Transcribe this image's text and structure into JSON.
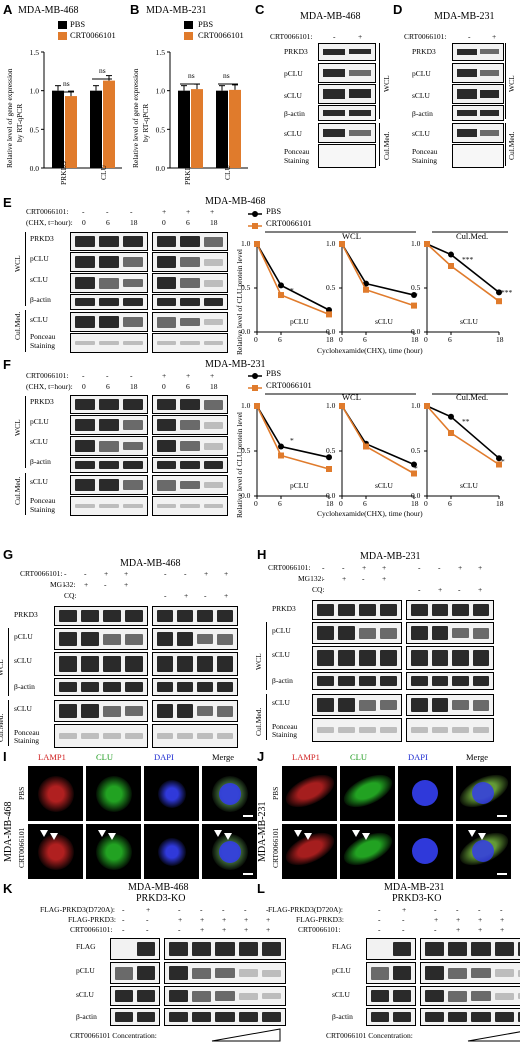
{
  "panels": {
    "A": {
      "letter": "A",
      "title": "MDA-MB-468"
    },
    "B": {
      "letter": "B",
      "title": "MDA-MB-231"
    },
    "C": {
      "letter": "C",
      "title": "MDA-MB-468"
    },
    "D": {
      "letter": "D",
      "title": "MDA-MB-231"
    },
    "E": {
      "letter": "E",
      "title": "MDA-MB-468"
    },
    "F": {
      "letter": "F",
      "title": "MDA-MB-231"
    },
    "G": {
      "letter": "G",
      "title": "MDA-MB-468"
    },
    "H": {
      "letter": "H",
      "title": "MDA-MB-231"
    },
    "I": {
      "letter": "I",
      "title": "MDA-MB-468"
    },
    "J": {
      "letter": "J",
      "title": "MDA-MB-231"
    },
    "K": {
      "letter": "K",
      "title": "MDA-MB-468",
      "subtitle": "PRKD3-KO"
    },
    "L": {
      "letter": "L",
      "title": "MDA-MB-231",
      "subtitle": "PRKD3-KO"
    }
  },
  "labels": {
    "crt": "CRT0066101:",
    "mg132": "MG132:",
    "cq": "CQ:",
    "chx": "(CHX, t=hour):",
    "flag_mut": "FLAG-PRKD3(D720A):",
    "flag_wt": "FLAG-PRKD3:",
    "wcl": "WCL",
    "culmed": "Cul.Med.",
    "prkd3": "PRKD3",
    "pclu": "pCLU",
    "sclu": "sCLU",
    "bactin": "β-actin",
    "ponceau1": "Ponceau",
    "ponceau2": "Staining",
    "flag": "FLAG",
    "plus": "+",
    "minus": "-",
    "t0": "0",
    "t6": "6",
    "t18": "18",
    "conc": "CRT0066101 Concentration:",
    "lamp1": "LAMP1",
    "clu": "CLU",
    "dapi": "DAPI",
    "merge": "Merge",
    "pbs": "PBS",
    "crtname": "CRT0066101",
    "ns": "ns",
    "stars3": "***",
    "stars2": "**",
    "star1": "*",
    "xlabel": "Cyclohexamide(CHX), time (hour)",
    "ylabel": "Relative level of CLU protein level",
    "ylab_bar1": "Relative level of gene expression",
    "ylab_bar2": "by RT-qPCR"
  },
  "colors": {
    "pbs": "#000000",
    "crt": "#e07b2c"
  },
  "chart_data": [
    {
      "type": "bar",
      "panel": "A",
      "categories": [
        "PRKD3",
        "CLU"
      ],
      "ylim": [
        0,
        1.5
      ],
      "yticks": [
        0.0,
        0.5,
        1.0,
        1.5
      ],
      "series": [
        {
          "name": "PBS",
          "values": [
            1.0,
            1.0
          ]
        },
        {
          "name": "CRT0066101",
          "values": [
            0.93,
            1.13
          ]
        }
      ],
      "annotations": [
        "ns",
        "ns"
      ]
    },
    {
      "type": "bar",
      "panel": "B",
      "categories": [
        "PRKD3",
        "CLU"
      ],
      "ylim": [
        0,
        1.5
      ],
      "yticks": [
        0.0,
        0.5,
        1.0,
        1.5
      ],
      "series": [
        {
          "name": "PBS",
          "values": [
            1.0,
            1.0
          ]
        },
        {
          "name": "CRT0066101",
          "values": [
            1.02,
            1.01
          ]
        }
      ],
      "annotations": [
        "ns",
        "ns"
      ]
    },
    {
      "type": "line",
      "panel": "E",
      "group": "WCL",
      "subtitle": "pCLU",
      "x": [
        0,
        6,
        18
      ],
      "ylim": [
        0,
        1.0
      ],
      "series": [
        {
          "name": "PBS",
          "values": [
            1.0,
            0.53,
            0.25
          ]
        },
        {
          "name": "CRT0066101",
          "values": [
            1.0,
            0.42,
            0.2
          ]
        }
      ],
      "annotation": "*"
    },
    {
      "type": "line",
      "panel": "E",
      "group": "WCL",
      "subtitle": "sCLU",
      "x": [
        0,
        6,
        18
      ],
      "ylim": [
        0,
        1.0
      ],
      "series": [
        {
          "name": "PBS",
          "values": [
            1.0,
            0.55,
            0.42
          ]
        },
        {
          "name": "CRT0066101",
          "values": [
            1.0,
            0.48,
            0.3
          ]
        }
      ],
      "annotation": "*"
    },
    {
      "type": "line",
      "panel": "E",
      "group": "Cul.Med.",
      "subtitle": "sCLU",
      "x": [
        0,
        6,
        18
      ],
      "ylim": [
        0,
        1.0
      ],
      "series": [
        {
          "name": "PBS",
          "values": [
            1.0,
            0.88,
            0.45
          ]
        },
        {
          "name": "CRT0066101",
          "values": [
            1.0,
            0.75,
            0.35
          ]
        }
      ],
      "annotations": [
        "***",
        "***"
      ]
    },
    {
      "type": "line",
      "panel": "F",
      "group": "WCL",
      "subtitle": "pCLU",
      "x": [
        0,
        6,
        18
      ],
      "ylim": [
        0,
        1.0
      ],
      "series": [
        {
          "name": "PBS",
          "values": [
            1.0,
            0.55,
            0.43
          ]
        },
        {
          "name": "CRT0066101",
          "values": [
            1.0,
            0.45,
            0.3
          ]
        }
      ],
      "annotation": "*"
    },
    {
      "type": "line",
      "panel": "F",
      "group": "WCL",
      "subtitle": "sCLU",
      "x": [
        0,
        6,
        18
      ],
      "ylim": [
        0,
        1.0
      ],
      "series": [
        {
          "name": "PBS",
          "values": [
            1.0,
            0.58,
            0.35
          ]
        },
        {
          "name": "CRT0066101",
          "values": [
            1.0,
            0.55,
            0.25
          ]
        }
      ],
      "annotation": "*"
    },
    {
      "type": "line",
      "panel": "F",
      "group": "Cul.Med.",
      "subtitle": "sCLU",
      "x": [
        0,
        6,
        18
      ],
      "ylim": [
        0,
        1.0
      ],
      "series": [
        {
          "name": "PBS",
          "values": [
            1.0,
            0.88,
            0.42
          ]
        },
        {
          "name": "CRT0066101",
          "values": [
            1.0,
            0.7,
            0.35
          ]
        }
      ],
      "annotations": [
        "**",
        "*"
      ]
    }
  ]
}
